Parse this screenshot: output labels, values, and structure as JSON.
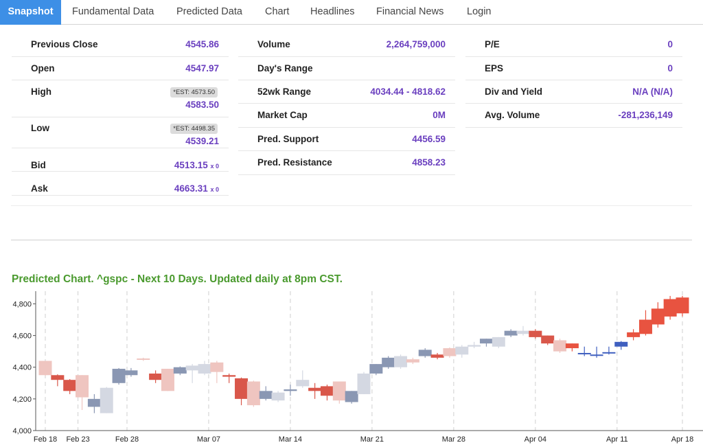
{
  "tabs": [
    {
      "label": "Snapshot",
      "active": true
    },
    {
      "label": "Fundamental Data",
      "active": false
    },
    {
      "label": "Predicted Data",
      "active": false
    },
    {
      "label": "Chart",
      "active": false
    },
    {
      "label": "Headlines",
      "active": false
    },
    {
      "label": "Financial News",
      "active": false
    },
    {
      "label": "Login",
      "active": false
    }
  ],
  "metrics": {
    "previous_close": {
      "label": "Previous Close",
      "value": "4545.86"
    },
    "open": {
      "label": "Open",
      "value": "4547.97"
    },
    "high": {
      "label": "High",
      "est": "*EST: 4573.50",
      "value": "4583.50"
    },
    "low": {
      "label": "Low",
      "est": "*EST: 4498.35",
      "value": "4539.21"
    },
    "bid": {
      "label": "Bid",
      "value": "4513.15",
      "size": "x 0"
    },
    "ask": {
      "label": "Ask",
      "value": "4663.31",
      "size": "x 0"
    },
    "volume": {
      "label": "Volume",
      "value": "2,264,759,000"
    },
    "days_range": {
      "label": "Day's Range",
      "value": ""
    },
    "wk52_range": {
      "label": "52wk Range",
      "value": "4034.44 - 4818.62"
    },
    "market_cap": {
      "label": "Market Cap",
      "value": "0M"
    },
    "pred_support": {
      "label": "Pred. Support",
      "value": "4456.59"
    },
    "pred_resistance": {
      "label": "Pred. Resistance",
      "value": "4858.23"
    },
    "pe": {
      "label": "P/E",
      "value": "0"
    },
    "eps": {
      "label": "EPS",
      "value": "0"
    },
    "div_yield": {
      "label": "Div and Yield",
      "value": "N/A (N/A)"
    },
    "avg_volume": {
      "label": "Avg. Volume",
      "value": "-281,236,149"
    }
  },
  "chart_title": "Predicted Chart. ^gspc - Next 10 Days. Updated daily at 8pm CST.",
  "colors": {
    "accent": "#3d8fe6",
    "value_text": "#6a3fbf",
    "chart_title": "#4a9a2e",
    "up_candle": "#8a97b3",
    "down_candle": "#d9574a",
    "faded_up": "#d4d8e2",
    "faded_down": "#efc5c0",
    "predicted_up": "#3f5fbf",
    "predicted_down": "#e85340"
  },
  "chart_data": {
    "type": "candlestick",
    "title": "",
    "ylim": [
      4000,
      4880
    ],
    "y_ticks": [
      4000,
      4200,
      4400,
      4600,
      4800
    ],
    "y_tick_labels": [
      "4,000",
      "4,200",
      "4,400",
      "4,600",
      "4,800"
    ],
    "x_tick_labels": [
      "Feb 18",
      "Feb 23",
      "Feb 28",
      "Mar 07",
      "Mar 14",
      "Mar 21",
      "Mar 28",
      "Apr 04",
      "Apr 11",
      "Apr 18"
    ],
    "x_tick_label_index": [
      0,
      2,
      5,
      10,
      15,
      20,
      25,
      30,
      35,
      39
    ],
    "grid": "vertical dashed",
    "candles": [
      {
        "open": 4440,
        "close": 4350,
        "high": 4440,
        "low": 4345,
        "style": "faded_down"
      },
      {
        "open": 4350,
        "close": 4320,
        "high": 4355,
        "low": 4280,
        "style": "down"
      },
      {
        "open": 4320,
        "close": 4250,
        "high": 4325,
        "low": 4230,
        "style": "down"
      },
      {
        "open": 4350,
        "close": 4210,
        "high": 4350,
        "low": 4130,
        "style": "faded_down"
      },
      {
        "open": 4150,
        "close": 4200,
        "high": 4230,
        "low": 4110,
        "style": "up"
      },
      {
        "open": 4110,
        "close": 4270,
        "high": 4275,
        "low": 4110,
        "style": "faded_up"
      },
      {
        "open": 4300,
        "close": 4390,
        "high": 4395,
        "low": 4290,
        "style": "up"
      },
      {
        "open": 4350,
        "close": 4380,
        "high": 4395,
        "low": 4340,
        "style": "up"
      },
      {
        "open": 4450,
        "close": 4455,
        "high": 4460,
        "low": 4440,
        "style": "faded_down"
      },
      {
        "open": 4360,
        "close": 4320,
        "high": 4380,
        "low": 4300,
        "style": "down"
      },
      {
        "open": 4390,
        "close": 4250,
        "high": 4390,
        "low": 4250,
        "style": "faded_down"
      },
      {
        "open": 4360,
        "close": 4400,
        "high": 4405,
        "low": 4350,
        "style": "up"
      },
      {
        "open": 4380,
        "close": 4410,
        "high": 4420,
        "low": 4300,
        "style": "faded_up"
      },
      {
        "open": 4360,
        "close": 4420,
        "high": 4440,
        "low": 4350,
        "style": "faded_up"
      },
      {
        "open": 4370,
        "close": 4430,
        "high": 4440,
        "low": 4300,
        "style": "faded_down"
      },
      {
        "open": 4350,
        "close": 4340,
        "high": 4360,
        "low": 4300,
        "style": "down"
      },
      {
        "open": 4330,
        "close": 4200,
        "high": 4335,
        "low": 4160,
        "style": "down"
      },
      {
        "open": 4310,
        "close": 4160,
        "high": 4315,
        "low": 4150,
        "style": "faded_down"
      },
      {
        "open": 4200,
        "close": 4250,
        "high": 4280,
        "low": 4190,
        "style": "up"
      },
      {
        "open": 4190,
        "close": 4240,
        "high": 4250,
        "low": 4180,
        "style": "faded_up"
      },
      {
        "open": 4260,
        "close": 4250,
        "high": 4290,
        "low": 4220,
        "style": "up"
      },
      {
        "open": 4280,
        "close": 4320,
        "high": 4380,
        "low": 4270,
        "style": "faded_up"
      },
      {
        "open": 4250,
        "close": 4270,
        "high": 4300,
        "low": 4200,
        "style": "down"
      },
      {
        "open": 4280,
        "close": 4220,
        "high": 4290,
        "low": 4190,
        "style": "down"
      },
      {
        "open": 4310,
        "close": 4190,
        "high": 4310,
        "low": 4170,
        "style": "faded_down"
      },
      {
        "open": 4180,
        "close": 4250,
        "high": 4250,
        "low": 4170,
        "style": "up"
      },
      {
        "open": 4230,
        "close": 4360,
        "high": 4370,
        "low": 4230,
        "style": "faded_up"
      },
      {
        "open": 4360,
        "close": 4420,
        "high": 4420,
        "low": 4350,
        "style": "up"
      },
      {
        "open": 4400,
        "close": 4460,
        "high": 4470,
        "low": 4390,
        "style": "up"
      },
      {
        "open": 4400,
        "close": 4470,
        "high": 4480,
        "low": 4390,
        "style": "faded_up"
      },
      {
        "open": 4450,
        "close": 4430,
        "high": 4460,
        "low": 4420,
        "style": "faded_down"
      },
      {
        "open": 4470,
        "close": 4510,
        "high": 4520,
        "low": 4460,
        "style": "up"
      },
      {
        "open": 4480,
        "close": 4460,
        "high": 4490,
        "low": 4450,
        "style": "down"
      },
      {
        "open": 4520,
        "close": 4470,
        "high": 4525,
        "low": 4460,
        "style": "faded_down"
      },
      {
        "open": 4480,
        "close": 4530,
        "high": 4540,
        "low": 4460,
        "style": "faded_up"
      },
      {
        "open": 4530,
        "close": 4540,
        "high": 4560,
        "low": 4520,
        "style": "faded_up"
      },
      {
        "open": 4550,
        "close": 4580,
        "high": 4580,
        "low": 4530,
        "style": "up"
      },
      {
        "open": 4530,
        "close": 4590,
        "high": 4590,
        "low": 4520,
        "style": "faded_up"
      },
      {
        "open": 4600,
        "close": 4630,
        "high": 4640,
        "low": 4590,
        "style": "up"
      },
      {
        "open": 4630,
        "close": 4610,
        "high": 4660,
        "low": 4600,
        "style": "faded_up"
      },
      {
        "open": 4630,
        "close": 4590,
        "high": 4640,
        "low": 4580,
        "style": "down"
      },
      {
        "open": 4600,
        "close": 4550,
        "high": 4600,
        "low": 4540,
        "style": "down"
      },
      {
        "open": 4570,
        "close": 4500,
        "high": 4580,
        "low": 4490,
        "style": "faded_down"
      },
      {
        "open": 4550,
        "close": 4520,
        "high": 4550,
        "low": 4500,
        "style": "predicted_down"
      },
      {
        "open": 4490,
        "close": 4490,
        "high": 4530,
        "low": 4470,
        "style": "predicted_up"
      },
      {
        "open": 4480,
        "close": 4480,
        "high": 4530,
        "low": 4460,
        "style": "predicted_up"
      },
      {
        "open": 4490,
        "close": 4495,
        "high": 4530,
        "low": 4480,
        "style": "predicted_up"
      },
      {
        "open": 4530,
        "close": 4560,
        "high": 4565,
        "low": 4510,
        "style": "predicted_up"
      },
      {
        "open": 4590,
        "close": 4620,
        "high": 4640,
        "low": 4570,
        "style": "predicted_down"
      },
      {
        "open": 4610,
        "close": 4700,
        "high": 4760,
        "low": 4600,
        "style": "predicted_down"
      },
      {
        "open": 4670,
        "close": 4770,
        "high": 4810,
        "low": 4650,
        "style": "predicted_down"
      },
      {
        "open": 4720,
        "close": 4830,
        "high": 4850,
        "low": 4700,
        "style": "predicted_down"
      },
      {
        "open": 4740,
        "close": 4840,
        "high": 4850,
        "low": 4720,
        "style": "predicted_down"
      }
    ]
  }
}
